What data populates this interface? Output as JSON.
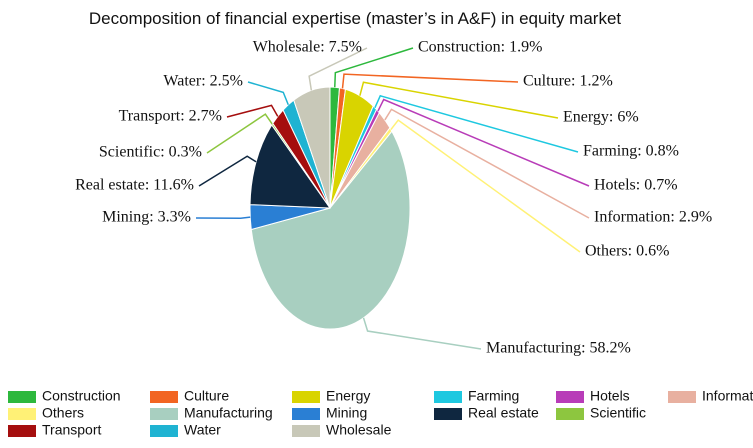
{
  "chart_data": {
    "type": "pie",
    "title": "Decomposition of financial expertise (master’s in A&F) in equity market",
    "categories": [
      "Construction",
      "Culture",
      "Energy",
      "Farming",
      "Hotels",
      "Information",
      "Others",
      "Manufacturing",
      "Mining",
      "Real estate",
      "Scientific",
      "Transport",
      "Water",
      "Wholesale"
    ],
    "values": [
      1.9,
      1.2,
      6,
      0.8,
      0.7,
      2.9,
      0.6,
      58.2,
      3.3,
      11.6,
      0.3,
      2.7,
      2.5,
      7.5
    ],
    "value_labels": [
      "Construction: 1.9%",
      "Culture: 1.2%",
      "Energy: 6%",
      "Farming: 0.8%",
      "Hotels: 0.7%",
      "Information: 2.9%",
      "Others: 0.6%",
      "Manufacturing: 58.2%",
      "Mining: 3.3%",
      "Real estate: 11.6%",
      "Scientific: 0.3%",
      "Transport: 2.7%",
      "Water: 2.5%",
      "Wholesale: 7.5%"
    ],
    "colors": [
      "#2db83d",
      "#f26522",
      "#d9d400",
      "#1ec8e0",
      "#b83cb8",
      "#e8b0a0",
      "#fff176",
      "#a8cfc0",
      "#2a7fd4",
      "#0f2740",
      "#8dc63f",
      "#a50e0e",
      "#1fb3d2",
      "#c8c8b8"
    ],
    "legend": "bottom"
  }
}
